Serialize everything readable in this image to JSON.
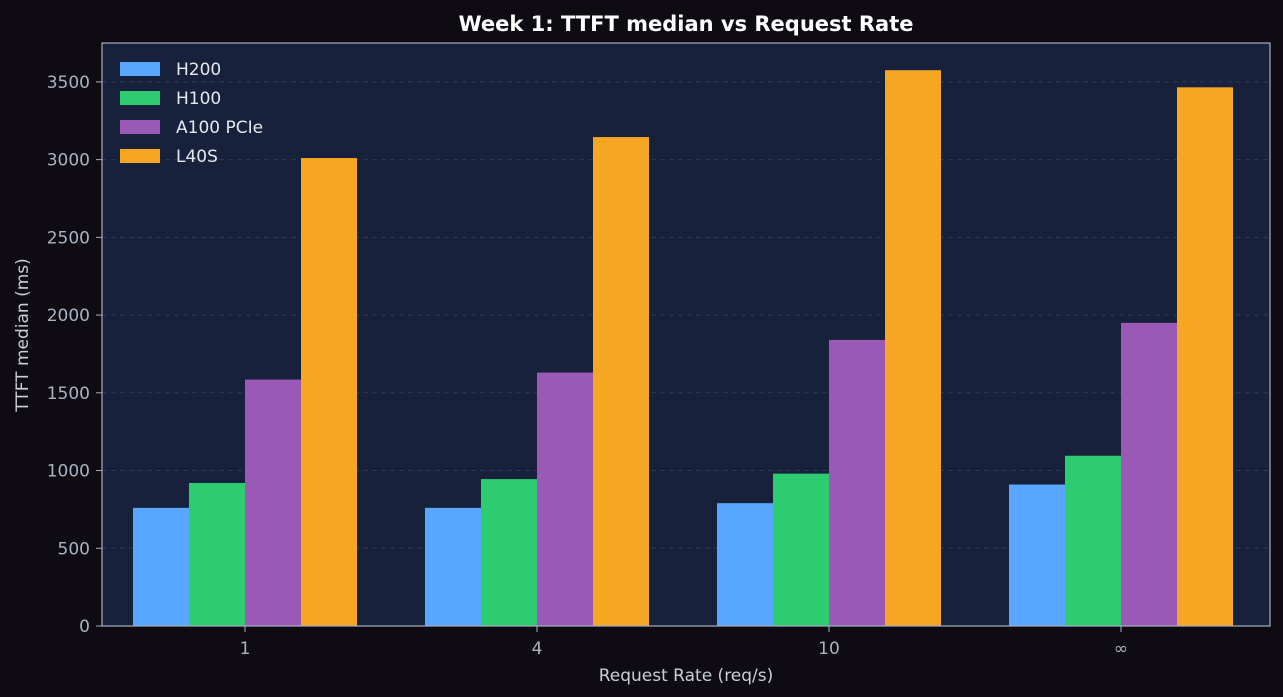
{
  "chart_data": {
    "type": "bar",
    "title": "Week 1: TTFT median vs Request Rate",
    "xlabel": "Request Rate (req/s)",
    "ylabel": "TTFT median (ms)",
    "categories": [
      "1",
      "4",
      "10",
      "∞"
    ],
    "ylim": [
      0,
      3750
    ],
    "yticks": [
      0,
      500,
      1000,
      1500,
      2000,
      2500,
      3000,
      3500
    ],
    "grid": true,
    "legend_position": "top-left",
    "series": [
      {
        "name": "H200",
        "color": "#58a6ff",
        "values": [
          760,
          760,
          790,
          910
        ]
      },
      {
        "name": "H100",
        "color": "#2ecc71",
        "values": [
          920,
          945,
          980,
          1095
        ]
      },
      {
        "name": "A100 PCIe",
        "color": "#9b59b6",
        "values": [
          1585,
          1630,
          1840,
          1950
        ]
      },
      {
        "name": "L40S",
        "color": "#f5a623",
        "values": [
          3010,
          3145,
          3575,
          3465
        ]
      }
    ],
    "colors": {
      "figure_background": "#0e0c12",
      "plot_background": "#17213b",
      "axis_frame": "#a8b0c2",
      "grid": "#2e3a55"
    }
  }
}
